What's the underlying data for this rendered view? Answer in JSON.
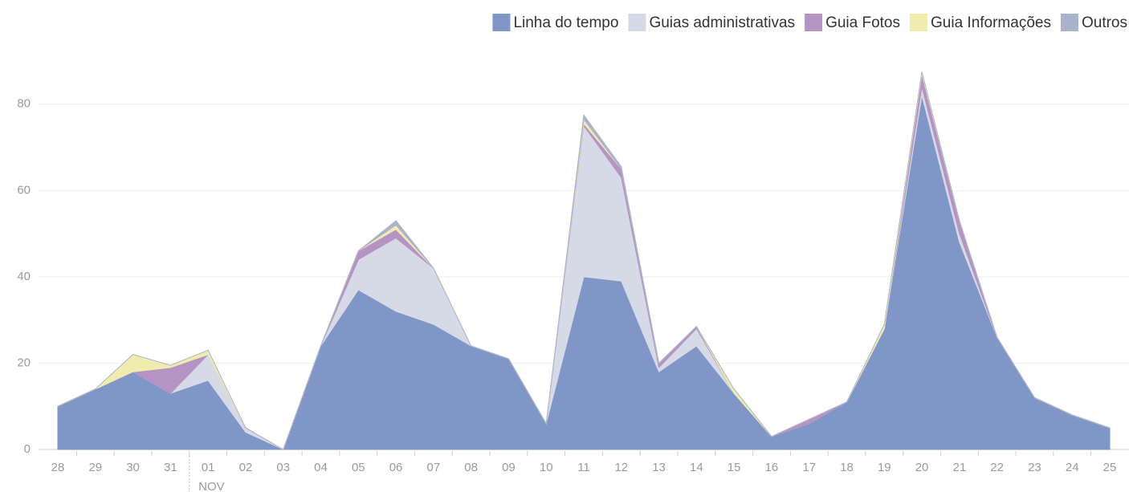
{
  "chart_data": {
    "type": "area",
    "stacked": true,
    "categories": [
      "28",
      "29",
      "30",
      "31",
      "01",
      "02",
      "03",
      "04",
      "05",
      "06",
      "07",
      "08",
      "09",
      "10",
      "11",
      "12",
      "13",
      "14",
      "15",
      "16",
      "17",
      "18",
      "19",
      "20",
      "21",
      "22",
      "23",
      "24",
      "25"
    ],
    "annotation": "NOV",
    "series": [
      {
        "name": "Linha do tempo",
        "color": "#7f96c7",
        "values": [
          10,
          14,
          18,
          13,
          16,
          4,
          0,
          24,
          37,
          32,
          29,
          24,
          21,
          6,
          40,
          39,
          18,
          24,
          13,
          3,
          6,
          11,
          28,
          82,
          48,
          26,
          12,
          8,
          5
        ]
      },
      {
        "name": "Guias administrativas",
        "color": "#d6d9e6",
        "values": [
          0,
          0,
          0,
          0,
          6,
          1,
          0,
          0,
          7,
          17,
          13,
          0,
          0,
          0,
          35,
          24,
          1,
          4,
          0,
          0,
          0,
          0,
          0,
          2,
          2,
          0,
          0,
          0,
          0
        ]
      },
      {
        "name": "Guia Fotos",
        "color": "#b594c4",
        "values": [
          0,
          0,
          0,
          6,
          0,
          0,
          0,
          0,
          2,
          2,
          0,
          0,
          0,
          0,
          0.5,
          2,
          1,
          0.5,
          0,
          0,
          1,
          0,
          0,
          3,
          3,
          0,
          0,
          0,
          0
        ]
      },
      {
        "name": "Guia Informações",
        "color": "#f0ecb0",
        "values": [
          0,
          0,
          4,
          0.5,
          1,
          0,
          0,
          0,
          0,
          1,
          0,
          0,
          0,
          0,
          1,
          0,
          0,
          0,
          1,
          0,
          0,
          0,
          1,
          0.5,
          0,
          0,
          0,
          0,
          0
        ]
      },
      {
        "name": "Outros",
        "color": "#a9b4cc",
        "values": [
          0,
          0,
          0,
          0,
          0,
          0,
          0,
          0,
          0,
          1,
          0,
          0,
          0,
          0,
          1,
          0.5,
          0,
          0,
          0,
          0,
          0,
          0,
          0,
          0,
          0,
          0,
          0,
          0,
          0
        ]
      }
    ],
    "ylim": [
      0,
      90
    ],
    "yticks": [
      0,
      20,
      40,
      60,
      80
    ],
    "grid": true,
    "legend": "top-right"
  }
}
